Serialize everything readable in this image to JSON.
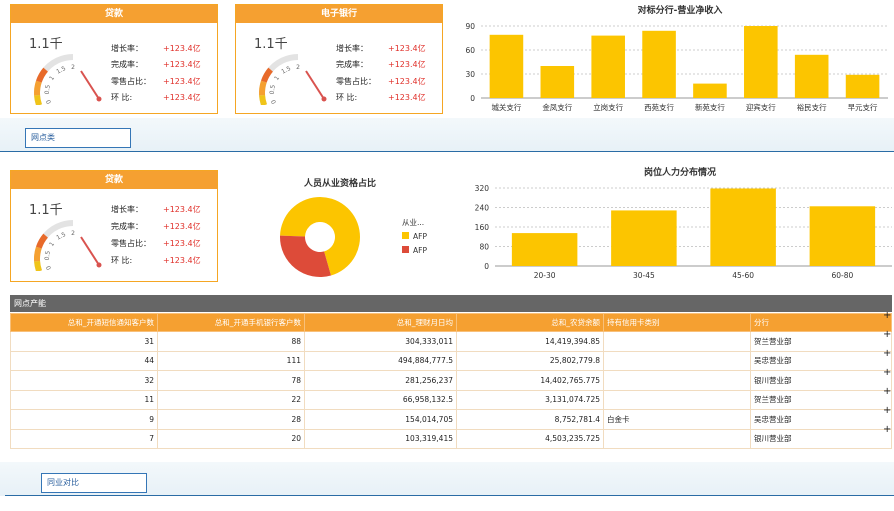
{
  "cards": [
    {
      "title": "贷款",
      "gauge_value": "1.1千",
      "stats": [
        {
          "label": "增长率：",
          "value": "+123.4亿"
        },
        {
          "label": "完成率：",
          "value": "+123.4亿"
        },
        {
          "label": "零售占比：",
          "value": "+123.4亿"
        },
        {
          "label": "环  比:",
          "value": "+123.4亿"
        }
      ]
    },
    {
      "title": "电子银行",
      "gauge_value": "1.1千",
      "stats": [
        {
          "label": "增长率：",
          "value": "+123.4亿"
        },
        {
          "label": "完成率：",
          "value": "+123.4亿"
        },
        {
          "label": "零售占比：",
          "value": "+123.4亿"
        },
        {
          "label": "环  比:",
          "value": "+123.4亿"
        }
      ]
    },
    {
      "title": "贷款",
      "gauge_value": "1.1千",
      "stats": [
        {
          "label": "增长率：",
          "value": "+123.4亿"
        },
        {
          "label": "完成率：",
          "value": "+123.4亿"
        },
        {
          "label": "零售占比：",
          "value": "+123.4亿"
        },
        {
          "label": "环  比:",
          "value": "+123.4亿"
        }
      ]
    }
  ],
  "gauge_ticks": [
    "0",
    "0.5",
    "1",
    "1.5",
    "2"
  ],
  "gauge_level": 1.1,
  "tabs": {
    "outlets": "网点类",
    "peer": "同业对比"
  },
  "panel_title": "网点产能",
  "colors": {
    "accent": "#f5a031",
    "bar": "#fcc500",
    "pie_a": "#fcc500",
    "pie_b": "#dd4b39",
    "tab_border": "#3576b6"
  },
  "chart_data": [
    {
      "type": "bar",
      "title": "对标分行-营业净收入",
      "categories": [
        "城关支行",
        "金凤支行",
        "立岗支行",
        "西苑支行",
        "新苑支行",
        "迎宾支行",
        "裕民支行",
        "早元支行"
      ],
      "values": [
        79,
        40,
        78,
        84,
        18,
        90,
        54,
        29
      ],
      "ylim": [
        0,
        90
      ],
      "yticks": [
        "0",
        "30",
        "60",
        "90"
      ],
      "grid": true
    },
    {
      "type": "pie",
      "title": "人员从业资格占比",
      "donut": true,
      "legend_title": "从业...",
      "series": [
        {
          "name": "AFP",
          "value": 70
        },
        {
          "name": "AFP",
          "value": 30
        }
      ],
      "legend_position": "right"
    },
    {
      "type": "bar",
      "title": "岗位人力分布情况",
      "categories": [
        "20-30",
        "30-45",
        "45-60",
        "60-80"
      ],
      "values": [
        135,
        228,
        318,
        245
      ],
      "ylim": [
        0,
        320
      ],
      "yticks": [
        "0",
        "80",
        "160",
        "240",
        "320"
      ],
      "grid": true
    }
  ],
  "table": {
    "headers": [
      "总和_开通短信通知客户数",
      "总和_开通手机银行客户数",
      "总和_理财月日均",
      "总和_农贷余额",
      "持有信用卡类别",
      "分行"
    ],
    "rows": [
      [
        "31",
        "88",
        "304,333,011",
        "14,419,394.85",
        "",
        "贺兰营业部"
      ],
      [
        "44",
        "111",
        "494,884,777.5",
        "25,802,779.8",
        "",
        "吴忠营业部"
      ],
      [
        "32",
        "78",
        "281,256,237",
        "14,402,765.775",
        "",
        "银川营业部"
      ],
      [
        "11",
        "22",
        "66,958,132.5",
        "3,131,074.725",
        "",
        "贺兰营业部"
      ],
      [
        "9",
        "28",
        "154,014,705",
        "8,752,781.4",
        "白金卡",
        "吴忠营业部"
      ],
      [
        "7",
        "20",
        "103,319,415",
        "4,503,235.725",
        "",
        "银川营业部"
      ]
    ]
  }
}
